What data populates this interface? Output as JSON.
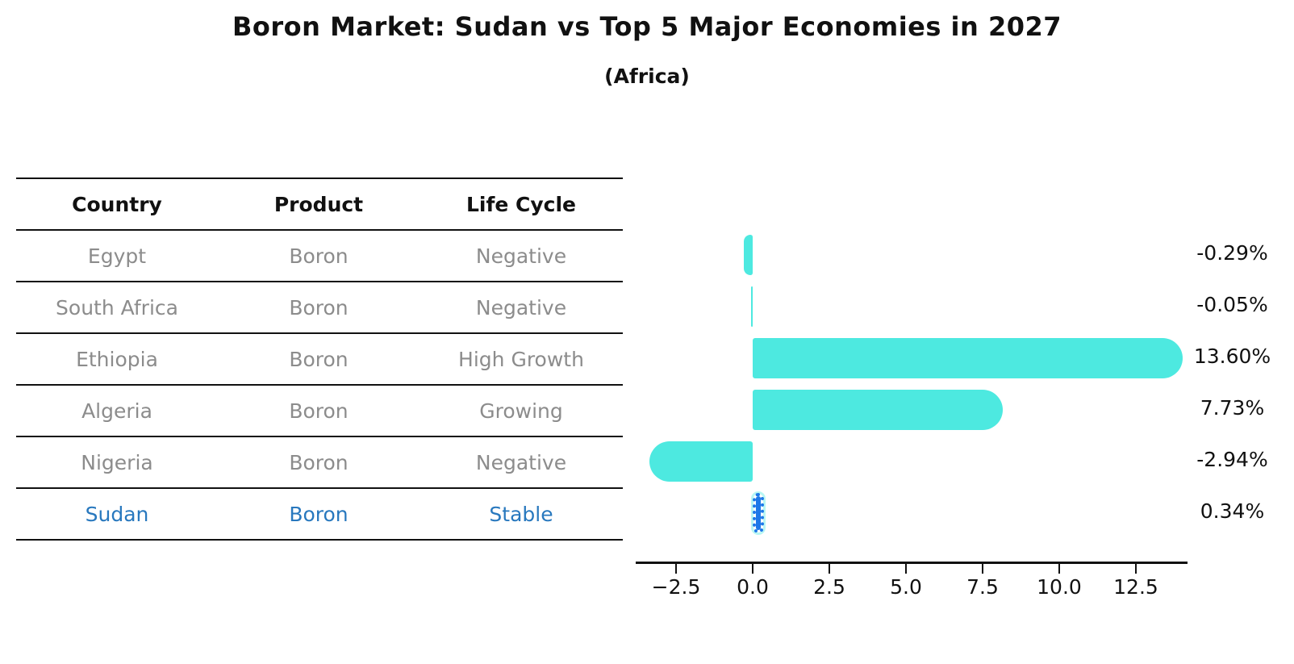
{
  "title": "Boron Market: Sudan vs Top 5 Major Economies in 2027",
  "subtitle": "(Africa)",
  "table": {
    "headers": [
      "Country",
      "Product",
      "Life Cycle"
    ],
    "rows": [
      {
        "country": "Egypt",
        "product": "Boron",
        "life_cycle": "Negative",
        "highlight": false
      },
      {
        "country": "South Africa",
        "product": "Boron",
        "life_cycle": "Negative",
        "highlight": false
      },
      {
        "country": "Ethiopia",
        "product": "Boron",
        "life_cycle": "High Growth",
        "highlight": false
      },
      {
        "country": "Algeria",
        "product": "Boron",
        "life_cycle": "Growing",
        "highlight": false
      },
      {
        "country": "Nigeria",
        "product": "Boron",
        "life_cycle": "Negative",
        "highlight": false
      },
      {
        "country": "Sudan",
        "product": "Boron",
        "life_cycle": "Stable",
        "highlight": true
      }
    ]
  },
  "chart_data": {
    "type": "bar",
    "orientation": "horizontal",
    "title": "Boron Market: Sudan vs Top 5 Major Economies in 2027",
    "subtitle": "(Africa)",
    "categories": [
      "Egypt",
      "South Africa",
      "Ethiopia",
      "Algeria",
      "Nigeria",
      "Sudan"
    ],
    "values": [
      -0.29,
      -0.05,
      13.6,
      7.73,
      -2.94,
      0.34
    ],
    "value_labels": [
      "-0.29%",
      "-0.05%",
      "13.60%",
      "7.73%",
      "-2.94%",
      "0.34%"
    ],
    "x_tick_labels": [
      "−2.5",
      "0.0",
      "2.5",
      "5.0",
      "7.5",
      "10.0",
      "12.5"
    ],
    "x_tick_values": [
      -2.5,
      0.0,
      2.5,
      5.0,
      7.5,
      10.0,
      12.5
    ],
    "xlim": [
      -3.9,
      14.2
    ],
    "grid": false,
    "legend": null,
    "bar_color": "#4DE9E0",
    "highlight_bar_color": "#1E78E8",
    "highlight_index": 5,
    "highlight_text_color": "#2878BE"
  }
}
